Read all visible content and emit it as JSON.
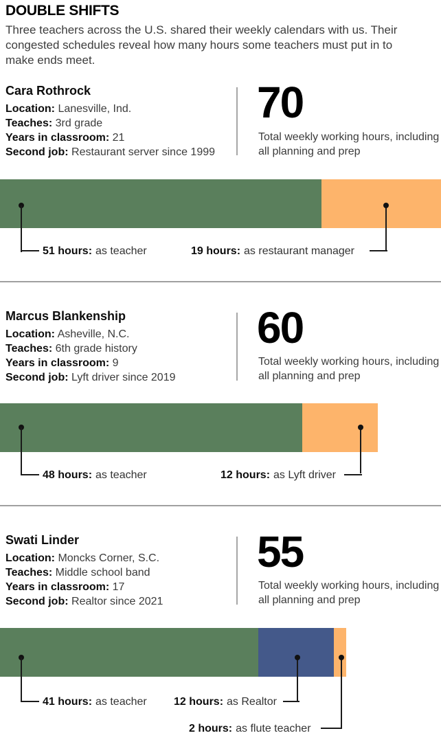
{
  "header": {
    "title": "DOUBLE SHIFTS",
    "intro": "Three teachers across the U.S. shared their weekly calendars with us. Their congested schedules reveal how many hours some teachers must put in to make ends meet."
  },
  "colors": {
    "teacher_green": "#5a7f5c",
    "second_job_orange": "#fdb46b",
    "realtor_blue": "#44598a",
    "divider_gray": "#a0a0a0"
  },
  "teachers": [
    {
      "name": "Cara Rothrock",
      "details": [
        {
          "label": "Location:",
          "value": "Lanesville, Ind."
        },
        {
          "label": "Teaches:",
          "value": "3rd grade"
        },
        {
          "label": "Years in classroom:",
          "value": "21"
        },
        {
          "label": "Second job:",
          "value": "Restaurant server since 1999"
        }
      ],
      "total_hours": "70",
      "total_caption": "Total weekly working hours, including all planning and prep",
      "callouts": [
        {
          "bold": "51 hours:",
          "text": "as teacher"
        },
        {
          "bold": "19 hours:",
          "text": "as restaurant manager"
        }
      ]
    },
    {
      "name": "Marcus Blankenship",
      "details": [
        {
          "label": "Location:",
          "value": "Asheville, N.C."
        },
        {
          "label": "Teaches:",
          "value": "6th grade history"
        },
        {
          "label": "Years in classroom:",
          "value": "9"
        },
        {
          "label": "Second job:",
          "value": "Lyft driver since 2019"
        }
      ],
      "total_hours": "60",
      "total_caption": "Total weekly working hours, including all planning and prep",
      "callouts": [
        {
          "bold": "48 hours:",
          "text": "as teacher"
        },
        {
          "bold": "12 hours:",
          "text": "as Lyft driver"
        }
      ]
    },
    {
      "name": "Swati Linder",
      "details": [
        {
          "label": "Location:",
          "value": "Moncks Corner, S.C."
        },
        {
          "label": "Teaches:",
          "value": "Middle school band"
        },
        {
          "label": "Years in classroom:",
          "value": "17"
        },
        {
          "label": "Second job:",
          "value": "Realtor since 2021"
        }
      ],
      "total_hours": "55",
      "total_caption": "Total weekly working hours, including all planning and prep",
      "callouts": [
        {
          "bold": "41 hours:",
          "text": "as teacher"
        },
        {
          "bold": "12 hours:",
          "text": "as Realtor"
        },
        {
          "bold": "2 hours:",
          "text": "as flute teacher"
        }
      ]
    }
  ],
  "chart_data": [
    {
      "type": "bar",
      "orientation": "horizontal",
      "stacked": true,
      "title": "Cara Rothrock weekly hours",
      "unit": "hours",
      "total": 70,
      "scale_full_width_hours": 70,
      "segments": [
        {
          "label": "as teacher",
          "value": 51,
          "color": "#5a7f5c"
        },
        {
          "label": "as restaurant manager",
          "value": 19,
          "color": "#fdb46b"
        }
      ]
    },
    {
      "type": "bar",
      "orientation": "horizontal",
      "stacked": true,
      "title": "Marcus Blankenship weekly hours",
      "unit": "hours",
      "total": 60,
      "scale_full_width_hours": 70,
      "segments": [
        {
          "label": "as teacher",
          "value": 48,
          "color": "#5a7f5c"
        },
        {
          "label": "as Lyft driver",
          "value": 12,
          "color": "#fdb46b"
        }
      ]
    },
    {
      "type": "bar",
      "orientation": "horizontal",
      "stacked": true,
      "title": "Swati Linder weekly hours",
      "unit": "hours",
      "total": 55,
      "scale_full_width_hours": 70,
      "segments": [
        {
          "label": "as teacher",
          "value": 41,
          "color": "#5a7f5c"
        },
        {
          "label": "as Realtor",
          "value": 12,
          "color": "#44598a"
        },
        {
          "label": "as flute teacher",
          "value": 2,
          "color": "#fdb46b"
        }
      ]
    }
  ]
}
